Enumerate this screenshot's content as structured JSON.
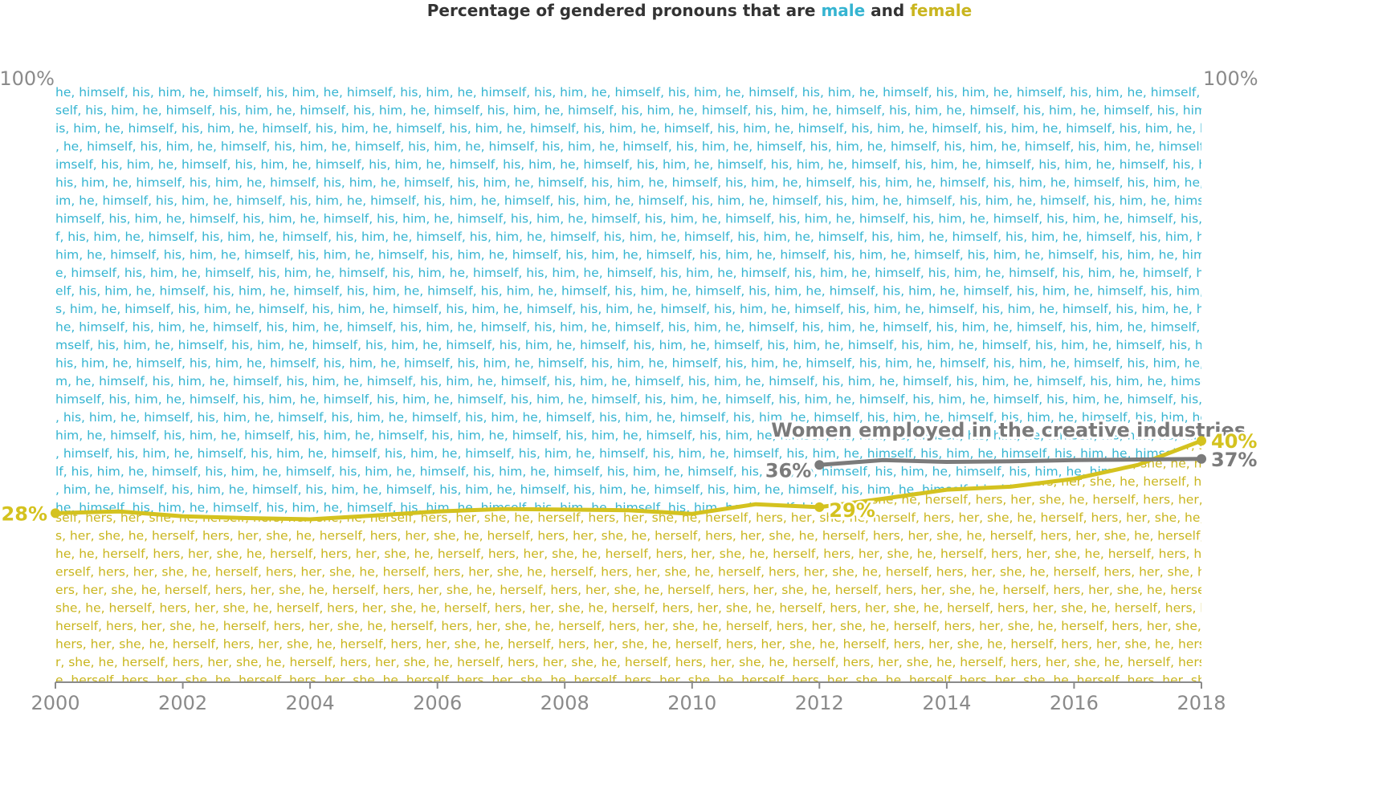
{
  "chart_data": {
    "type": "line",
    "title_parts": [
      {
        "text": "Percentage of gendered pronouns that are ",
        "color": "#333333"
      },
      {
        "text": "male",
        "color": "#35b4d1"
      },
      {
        "text": " and ",
        "color": "#333333"
      },
      {
        "text": "female",
        "color": "#c9b51e"
      }
    ],
    "x": [
      2000,
      2001,
      2002,
      2003,
      2004,
      2005,
      2006,
      2007,
      2008,
      2009,
      2010,
      2011,
      2012,
      2013,
      2014,
      2015,
      2016,
      2017,
      2018
    ],
    "xlim": [
      2000,
      2018
    ],
    "xticks": [
      "2000",
      "2002",
      "2004",
      "2006",
      "2008",
      "2010",
      "2012",
      "2014",
      "2016",
      "2018"
    ],
    "ylim": [
      0,
      100
    ],
    "ytick_label": "100%",
    "series": [
      {
        "name": "female",
        "color": "#d4c21f",
        "values": [
          28,
          28.3,
          27.5,
          27.2,
          27.0,
          27.6,
          28.3,
          28.7,
          28.6,
          28.5,
          27.9,
          29.5,
          29,
          30.4,
          31.9,
          32.4,
          33.7,
          36.0,
          40
        ],
        "labels": [
          {
            "x": 2000,
            "text": "28%"
          },
          {
            "x": 2012,
            "text": "29%"
          },
          {
            "x": 2018,
            "text": "40%"
          }
        ]
      },
      {
        "name": "Women employed in the creative industries",
        "color": "#7b7b7b",
        "x": [
          2012,
          2013,
          2014,
          2015,
          2016,
          2017,
          2018
        ],
        "values": [
          36,
          36.8,
          36.5,
          36.6,
          36.8,
          36.9,
          37
        ],
        "labels": [
          {
            "x": 2012,
            "text": "36%"
          },
          {
            "x": 2018,
            "text": "37%"
          }
        ]
      }
    ],
    "male_words": [
      "he,",
      "himself,",
      "his,",
      "him,"
    ],
    "female_words": [
      "he,",
      "herself,",
      "hers,",
      "her,",
      "she,"
    ],
    "colors": {
      "male": "#35b4d1",
      "female": "#c9b51e",
      "creative": "#7b7b7b",
      "tick": "#8a8a8a"
    }
  }
}
